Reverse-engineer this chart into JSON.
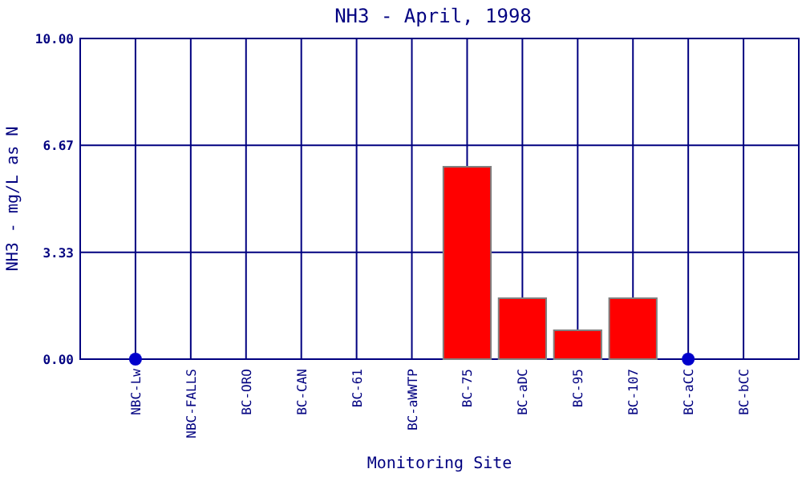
{
  "chart_data": {
    "type": "bar",
    "title": "NH3 - April, 1998",
    "xlabel": "Monitoring Site",
    "ylabel": "NH3 - mg/L as N",
    "categories": [
      "NBC-Lw",
      "NBC-FALLS",
      "BC-ORO",
      "BC-CAN",
      "BC-61",
      "BC-aWWTP",
      "BC-75",
      "BC-aDC",
      "BC-95",
      "BC-107",
      "BC-aCC",
      "BC-bCC"
    ],
    "series": [
      {
        "color": "#ff0000",
        "values": [
          null,
          null,
          null,
          null,
          null,
          null,
          6.0,
          1.9,
          0.9,
          1.9,
          null,
          null
        ]
      },
      {
        "type": "scatter",
        "color": "#0000cc",
        "values": [
          0,
          null,
          null,
          null,
          null,
          null,
          null,
          null,
          null,
          null,
          0,
          null
        ]
      }
    ],
    "ylim": [
      0,
      10
    ],
    "yticks": [
      {
        "value": 0,
        "label": "0.00"
      },
      {
        "value": 3.333,
        "label": "3.33"
      },
      {
        "value": 6.667,
        "label": "6.67"
      },
      {
        "value": 10,
        "label": "10.00"
      }
    ],
    "grid": true,
    "marker": "circle"
  }
}
